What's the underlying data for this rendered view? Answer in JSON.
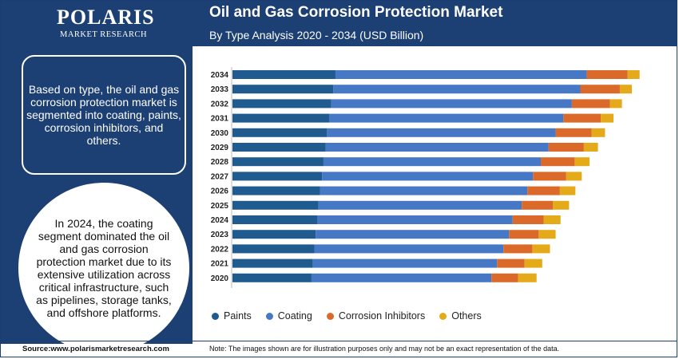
{
  "brand": {
    "name": "POLARIS",
    "subtitle": "MARKET RESEARCH"
  },
  "header": {
    "title": "Oil and Gas Corrosion Protection Market",
    "subtitle": "By Type Analysis 2020 - 2034 (USD Billion)"
  },
  "info_box": "Based on type, the oil and gas corrosion protection market is segmented into coating, paints, corrosion inhibitors, and others.",
  "circle_text": "In 2024, the coating segment dominated the oil and gas corrosion protection market due to its extensive utilization across critical infrastructure, such as pipelines, storage tanks, and offshore platforms.",
  "footer": {
    "source": "Source:www.polarismarketresearch.com",
    "note": "Note: The images shown are for illustration purposes only and may not be an exact representation of the data."
  },
  "colors": {
    "Paints": "#1f5b8f",
    "Coating": "#4678c6",
    "Corrosion Inhibitors": "#db6a2a",
    "Others": "#e4aa1a",
    "brand": "#1c3f74"
  },
  "chart_data": {
    "type": "bar",
    "orientation": "horizontal",
    "stacked": true,
    "categories": [
      "2034",
      "2033",
      "2032",
      "2031",
      "2030",
      "2029",
      "2028",
      "2027",
      "2026",
      "2025",
      "2024",
      "2023",
      "2022",
      "2021",
      "2020"
    ],
    "series": [
      {
        "name": "Paints",
        "values": [
          14.6,
          14.3,
          14.0,
          13.7,
          13.4,
          13.2,
          12.9,
          12.7,
          12.4,
          12.2,
          12.0,
          11.8,
          11.6,
          11.4,
          11.2
        ]
      },
      {
        "name": "Coating",
        "values": [
          35.6,
          35.0,
          34.1,
          33.2,
          32.4,
          31.6,
          30.8,
          29.9,
          29.4,
          28.8,
          27.7,
          27.4,
          26.8,
          26.1,
          25.5
        ]
      },
      {
        "name": "Corrosion Inhibitors",
        "values": [
          5.8,
          5.6,
          5.4,
          5.3,
          5.1,
          5.0,
          4.8,
          4.7,
          4.6,
          4.4,
          4.4,
          4.2,
          4.1,
          3.9,
          3.8
        ]
      },
      {
        "name": "Others",
        "values": [
          1.7,
          1.7,
          1.7,
          1.8,
          1.9,
          2.0,
          2.1,
          2.2,
          2.2,
          2.3,
          2.4,
          2.4,
          2.5,
          2.5,
          2.6
        ]
      }
    ],
    "xlim": [
      0,
      60
    ],
    "legend_position": "bottom",
    "grid": false
  }
}
